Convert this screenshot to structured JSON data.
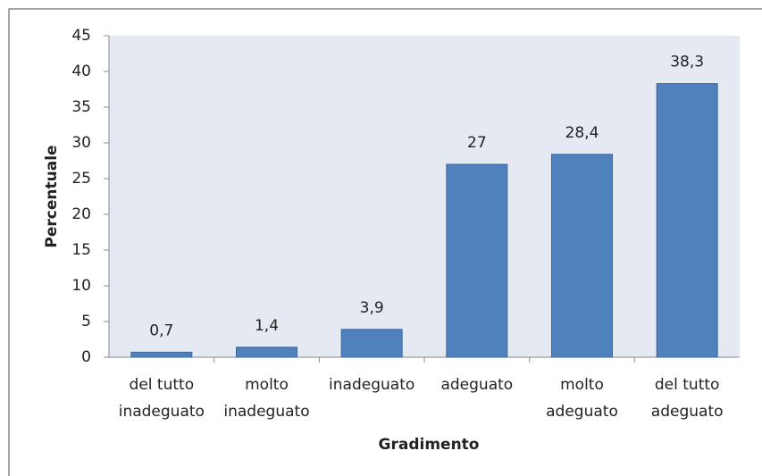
{
  "chart_data": {
    "type": "bar",
    "x_label": "Gradimento",
    "y_label": "Percentuale",
    "categories": [
      "del tutto\ninadeguato",
      "molto\ninadeguato",
      "inadeguato",
      "adeguato",
      "molto\nadeguato",
      "del tutto\nadeguato"
    ],
    "values": [
      0.7,
      1.4,
      3.9,
      27,
      28.4,
      38.3
    ],
    "value_labels": [
      "0,7",
      "1,4",
      "3,9",
      "27",
      "28,4",
      "38,3"
    ],
    "color": "#4f81bd",
    "ylim": [
      0,
      45
    ],
    "yticks": [
      0,
      5,
      10,
      15,
      20,
      25,
      30,
      35,
      40,
      45
    ],
    "grid": false
  }
}
